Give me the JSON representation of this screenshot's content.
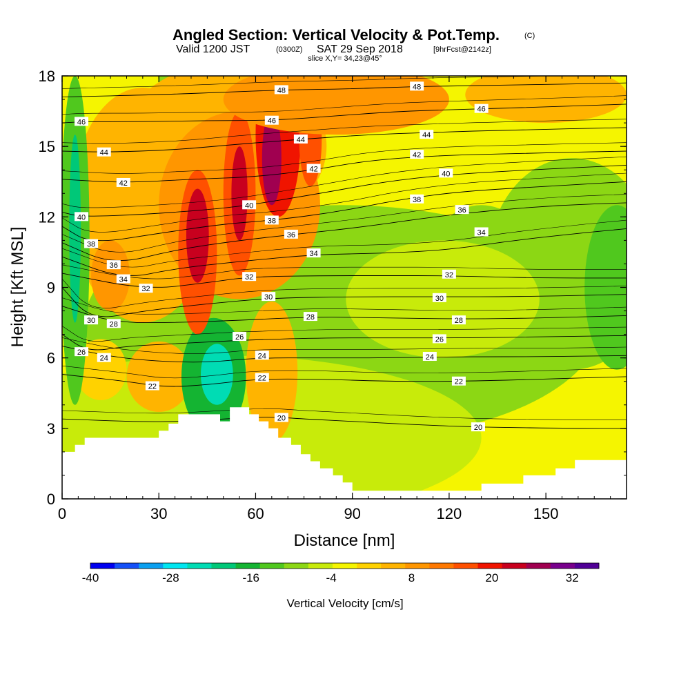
{
  "header": {
    "title": "Angled Section: Vertical Velocity & Pot.Temp.",
    "title_suffix": "(C)",
    "valid_prefix": "Valid 1200 JST",
    "valid_utc": "(0300Z)",
    "valid_date": "SAT 29 Sep 2018",
    "forecast": "[9hrFcst@2142z]",
    "slice": "slice X,Y= 34,23@45°"
  },
  "chart_data": {
    "type": "heatmap",
    "xlabel": "Distance [nm]",
    "ylabel": "Height [Kft MSL]",
    "xlim": [
      0,
      175
    ],
    "ylim": [
      0,
      18
    ],
    "x_ticks": [
      "0",
      "30",
      "60",
      "90",
      "120",
      "150"
    ],
    "x_tick_values": [
      0,
      30,
      60,
      90,
      120,
      150
    ],
    "y_ticks": [
      "0",
      "3",
      "6",
      "9",
      "12",
      "15",
      "18"
    ],
    "y_tick_values": [
      0,
      3,
      6,
      9,
      12,
      15,
      18
    ],
    "colorbar": {
      "label": "Vertical Velocity [cm/s]",
      "min": -40,
      "max": 36,
      "step": 4,
      "tick_labels": [
        "-40",
        "-28",
        "-16",
        "-4",
        "8",
        "20",
        "32"
      ],
      "tick_values": [
        -40,
        -28,
        -16,
        -4,
        8,
        20,
        32
      ],
      "colors": [
        "#0000f0",
        "#1450f8",
        "#0aa0f0",
        "#00e6f0",
        "#00dcb4",
        "#00c878",
        "#14b432",
        "#50c81e",
        "#8cd714",
        "#c8eb0a",
        "#f5f500",
        "#ffd200",
        "#ffb400",
        "#ff9600",
        "#ff7800",
        "#ff5000",
        "#f01400",
        "#c8001e",
        "#a00050",
        "#78008c",
        "#500096"
      ]
    },
    "terrain": [
      [
        0,
        2
      ],
      [
        4,
        2
      ],
      [
        4,
        2.3
      ],
      [
        7,
        2.3
      ],
      [
        7,
        2.6
      ],
      [
        30,
        2.6
      ],
      [
        30,
        2.9
      ],
      [
        33,
        2.9
      ],
      [
        33,
        3.2
      ],
      [
        36,
        3.2
      ],
      [
        36,
        3.6
      ],
      [
        49,
        3.6
      ],
      [
        49,
        3.3
      ],
      [
        52,
        3.3
      ],
      [
        52,
        3.9
      ],
      [
        58,
        3.9
      ],
      [
        58,
        3.6
      ],
      [
        61,
        3.6
      ],
      [
        61,
        3.3
      ],
      [
        64,
        3.3
      ],
      [
        64,
        3
      ],
      [
        67,
        3
      ],
      [
        67,
        2.6
      ],
      [
        71,
        2.6
      ],
      [
        71,
        2.3
      ],
      [
        74,
        2.3
      ],
      [
        74,
        1.9
      ],
      [
        77,
        1.9
      ],
      [
        77,
        1.6
      ],
      [
        80,
        1.6
      ],
      [
        80,
        1.3
      ],
      [
        84,
        1.3
      ],
      [
        84,
        1
      ],
      [
        87,
        1
      ],
      [
        87,
        0.7
      ],
      [
        90,
        0.7
      ],
      [
        90,
        0.35
      ],
      [
        130,
        0.35
      ],
      [
        130,
        0.65
      ],
      [
        143,
        0.65
      ],
      [
        143,
        1
      ],
      [
        153,
        1
      ],
      [
        153,
        1.3
      ],
      [
        159,
        1.3
      ],
      [
        159,
        1.65
      ],
      [
        175,
        1.65
      ]
    ],
    "theta_contours": [
      {
        "level": 20,
        "pts": [
          [
            0,
            3.4
          ],
          [
            30,
            3.25
          ],
          [
            50,
            3.4
          ],
          [
            64,
            3.5
          ],
          [
            75,
            3.4
          ],
          [
            90,
            3.3
          ],
          [
            110,
            3.15
          ],
          [
            130,
            3.05
          ],
          [
            160,
            3.0
          ],
          [
            175,
            3.0
          ]
        ],
        "labels": [
          [
            68,
            3.45
          ],
          [
            129,
            3.05
          ]
        ]
      },
      {
        "level": 22,
        "pts": [
          [
            0,
            5.3
          ],
          [
            20,
            5.0
          ],
          [
            32,
            4.75
          ],
          [
            45,
            4.85
          ],
          [
            60,
            5.1
          ],
          [
            80,
            5.1
          ],
          [
            100,
            5.0
          ],
          [
            125,
            5.0
          ],
          [
            150,
            5.1
          ],
          [
            175,
            5.2
          ]
        ],
        "labels": [
          [
            28,
            4.8
          ],
          [
            62,
            5.15
          ],
          [
            123,
            5.0
          ]
        ]
      },
      {
        "level": 24,
        "pts": [
          [
            0,
            6.5
          ],
          [
            15,
            6.05
          ],
          [
            30,
            5.85
          ],
          [
            45,
            5.8
          ],
          [
            60,
            6.0
          ],
          [
            80,
            6.0
          ],
          [
            100,
            6.0
          ],
          [
            125,
            6.05
          ],
          [
            150,
            6.05
          ],
          [
            175,
            6.1
          ]
        ],
        "labels": [
          [
            13,
            6.0
          ],
          [
            62,
            6.1
          ],
          [
            114,
            6.05
          ]
        ]
      },
      {
        "level": 26,
        "pts": [
          [
            0,
            7.0
          ],
          [
            8,
            6.25
          ],
          [
            20,
            6.5
          ],
          [
            35,
            6.6
          ],
          [
            55,
            6.75
          ],
          [
            80,
            6.85
          ],
          [
            100,
            6.85
          ],
          [
            125,
            6.85
          ],
          [
            150,
            6.9
          ],
          [
            175,
            6.95
          ]
        ],
        "labels": [
          [
            6,
            6.25
          ],
          [
            55,
            6.9
          ],
          [
            117,
            6.8
          ]
        ]
      },
      {
        "level": 28,
        "pts": [
          [
            0,
            8.2
          ],
          [
            16,
            7.5
          ],
          [
            35,
            7.5
          ],
          [
            55,
            7.6
          ],
          [
            78,
            7.75
          ],
          [
            100,
            7.7
          ],
          [
            125,
            7.65
          ],
          [
            150,
            7.7
          ],
          [
            175,
            7.8
          ]
        ],
        "labels": [
          [
            16,
            7.45
          ],
          [
            77,
            7.75
          ],
          [
            123,
            7.6
          ]
        ]
      },
      {
        "level": 30,
        "pts": [
          [
            0,
            9.0
          ],
          [
            9,
            7.6
          ],
          [
            25,
            8.0
          ],
          [
            45,
            8.3
          ],
          [
            65,
            8.55
          ],
          [
            90,
            8.6
          ],
          [
            115,
            8.6
          ],
          [
            140,
            8.6
          ],
          [
            175,
            8.7
          ]
        ],
        "labels": [
          [
            9,
            7.6
          ],
          [
            64,
            8.6
          ],
          [
            117,
            8.55
          ]
        ]
      },
      {
        "level": 32,
        "pts": [
          [
            0,
            9.6
          ],
          [
            26,
            8.9
          ],
          [
            45,
            9.2
          ],
          [
            58,
            9.45
          ],
          [
            80,
            9.5
          ],
          [
            100,
            9.5
          ],
          [
            120,
            9.5
          ],
          [
            145,
            9.4
          ],
          [
            175,
            9.4
          ]
        ],
        "labels": [
          [
            26,
            8.95
          ],
          [
            58,
            9.45
          ],
          [
            120,
            9.55
          ]
        ]
      },
      {
        "level": 34,
        "pts": [
          [
            0,
            10.3
          ],
          [
            19,
            9.35
          ],
          [
            35,
            9.8
          ],
          [
            55,
            10.1
          ],
          [
            78,
            10.4
          ],
          [
            100,
            10.45
          ],
          [
            120,
            10.6
          ],
          [
            140,
            11.0
          ],
          [
            160,
            11.3
          ],
          [
            175,
            11.5
          ]
        ],
        "labels": [
          [
            19,
            9.35
          ],
          [
            78,
            10.45
          ],
          [
            130,
            11.35
          ]
        ]
      },
      {
        "level": 36,
        "pts": [
          [
            0,
            10.9
          ],
          [
            16,
            9.95
          ],
          [
            35,
            10.6
          ],
          [
            55,
            11.0
          ],
          [
            72,
            11.25
          ],
          [
            95,
            11.6
          ],
          [
            115,
            12.0
          ],
          [
            135,
            12.3
          ],
          [
            155,
            12.5
          ],
          [
            175,
            12.6
          ]
        ],
        "labels": [
          [
            16,
            9.95
          ],
          [
            71,
            11.25
          ],
          [
            124,
            12.3
          ]
        ]
      },
      {
        "level": 38,
        "pts": [
          [
            0,
            11.6
          ],
          [
            9,
            10.85
          ],
          [
            30,
            11.3
          ],
          [
            50,
            11.7
          ],
          [
            65,
            11.85
          ],
          [
            85,
            12.2
          ],
          [
            105,
            12.75
          ],
          [
            125,
            13.1
          ],
          [
            150,
            13.3
          ],
          [
            175,
            13.5
          ]
        ],
        "labels": [
          [
            9,
            10.85
          ],
          [
            65,
            11.85
          ],
          [
            110,
            12.75
          ]
        ]
      },
      {
        "level": 40,
        "pts": [
          [
            0,
            12.2
          ],
          [
            6,
            12.0
          ],
          [
            25,
            12.1
          ],
          [
            45,
            12.3
          ],
          [
            58,
            12.5
          ],
          [
            80,
            13.0
          ],
          [
            100,
            13.5
          ],
          [
            120,
            13.8
          ],
          [
            145,
            14.0
          ],
          [
            175,
            14.2
          ]
        ],
        "labels": [
          [
            6,
            12.0
          ],
          [
            58,
            12.5
          ],
          [
            119,
            13.85
          ]
        ]
      },
      {
        "level": 42,
        "pts": [
          [
            0,
            13.6
          ],
          [
            19,
            13.45
          ],
          [
            40,
            13.6
          ],
          [
            60,
            13.7
          ],
          [
            78,
            14.0
          ],
          [
            95,
            14.4
          ],
          [
            115,
            14.6
          ],
          [
            140,
            14.7
          ],
          [
            175,
            14.8
          ]
        ],
        "labels": [
          [
            19,
            13.45
          ],
          [
            78,
            14.05
          ],
          [
            110,
            14.65
          ]
        ]
      },
      {
        "level": 44,
        "pts": [
          [
            0,
            14.8
          ],
          [
            13,
            14.75
          ],
          [
            35,
            14.85
          ],
          [
            55,
            15.1
          ],
          [
            74,
            15.3
          ],
          [
            95,
            15.5
          ],
          [
            115,
            15.6
          ],
          [
            140,
            15.7
          ],
          [
            175,
            15.8
          ]
        ],
        "labels": [
          [
            13,
            14.75
          ],
          [
            74,
            15.3
          ],
          [
            113,
            15.5
          ]
        ]
      },
      {
        "level": 46,
        "pts": [
          [
            0,
            16.0
          ],
          [
            6,
            16.05
          ],
          [
            25,
            16.05
          ],
          [
            45,
            16.1
          ],
          [
            65,
            16.1
          ],
          [
            85,
            16.3
          ],
          [
            105,
            16.5
          ],
          [
            130,
            16.6
          ],
          [
            155,
            16.7
          ],
          [
            175,
            16.8
          ]
        ],
        "labels": [
          [
            6,
            16.05
          ],
          [
            65,
            16.1
          ],
          [
            130,
            16.6
          ]
        ]
      },
      {
        "level": 48,
        "pts": [
          [
            0,
            17.1
          ],
          [
            30,
            17.2
          ],
          [
            50,
            17.3
          ],
          [
            68,
            17.4
          ],
          [
            90,
            17.45
          ],
          [
            110,
            17.55
          ],
          [
            135,
            17.6
          ],
          [
            175,
            17.7
          ]
        ],
        "labels": [
          [
            68,
            17.4
          ],
          [
            110,
            17.55
          ]
        ]
      }
    ],
    "vv_cells": [
      {
        "cx": 87,
        "cy": 7.5,
        "rx": 80,
        "ry": 5,
        "v": -6
      },
      {
        "cx": 50,
        "cy": 2.6,
        "rx": 80,
        "ry": 3.5,
        "v": -3
      },
      {
        "cx": 158,
        "cy": 10.0,
        "rx": 26,
        "ry": 4.5,
        "v": -8
      },
      {
        "cx": 172,
        "cy": 9.0,
        "rx": 10,
        "ry": 3.5,
        "v": -11
      },
      {
        "cx": 130,
        "cy": 10.5,
        "rx": 15,
        "ry": 2.0,
        "v": -7
      },
      {
        "cx": 118,
        "cy": 8.5,
        "rx": 30,
        "ry": 2.5,
        "v": -4
      },
      {
        "cx": 25,
        "cy": 12.5,
        "rx": 22,
        "ry": 5,
        "v": 10
      },
      {
        "cx": 15,
        "cy": 9.5,
        "rx": 6,
        "ry": 1.5,
        "v": 15
      },
      {
        "cx": 30,
        "cy": 5.2,
        "rx": 10,
        "ry": 1.5,
        "v": 10
      },
      {
        "cx": 12,
        "cy": 5.5,
        "rx": 8,
        "ry": 1.3,
        "v": 6
      },
      {
        "cx": 65,
        "cy": 5.4,
        "rx": 8,
        "ry": 3.0,
        "v": 9
      },
      {
        "cx": 4,
        "cy": 11,
        "rx": 4.5,
        "ry": 7,
        "v": -12
      },
      {
        "cx": 4,
        "cy": 11.5,
        "rx": 1.8,
        "ry": 4,
        "v": -20
      },
      {
        "cx": 47,
        "cy": 5.2,
        "rx": 10,
        "ry": 2.5,
        "v": -14
      },
      {
        "cx": 48,
        "cy": 5.3,
        "rx": 5,
        "ry": 1.3,
        "v": -24
      },
      {
        "cx": 32,
        "cy": 16,
        "rx": 3,
        "ry": 2.5,
        "v": -6
      },
      {
        "cx": 50,
        "cy": 15.0,
        "rx": 32,
        "ry": 3.5,
        "v": 10
      },
      {
        "cx": 55,
        "cy": 12.5,
        "rx": 25,
        "ry": 4,
        "v": 14
      },
      {
        "cx": 42,
        "cy": 10.5,
        "rx": 6,
        "ry": 3.5,
        "v": 20
      },
      {
        "cx": 42,
        "cy": 11.2,
        "rx": 3.5,
        "ry": 2,
        "v": 28
      },
      {
        "cx": 55,
        "cy": 13.0,
        "rx": 5,
        "ry": 3.5,
        "v": 22
      },
      {
        "cx": 55,
        "cy": 13.0,
        "rx": 2.5,
        "ry": 2,
        "v": 30
      },
      {
        "cx": 67,
        "cy": 15.5,
        "rx": 7,
        "ry": 3.5,
        "v": 24
      },
      {
        "cx": 65,
        "cy": 14.5,
        "rx": 3,
        "ry": 2,
        "v": 34
      },
      {
        "cx": 77,
        "cy": 15.3,
        "rx": 3.5,
        "ry": 2,
        "v": 22
      },
      {
        "cx": 85,
        "cy": 17.0,
        "rx": 35,
        "ry": 1.5,
        "v": 14
      },
      {
        "cx": 150,
        "cy": 17.2,
        "rx": 25,
        "ry": 1.2,
        "v": 10
      }
    ]
  }
}
